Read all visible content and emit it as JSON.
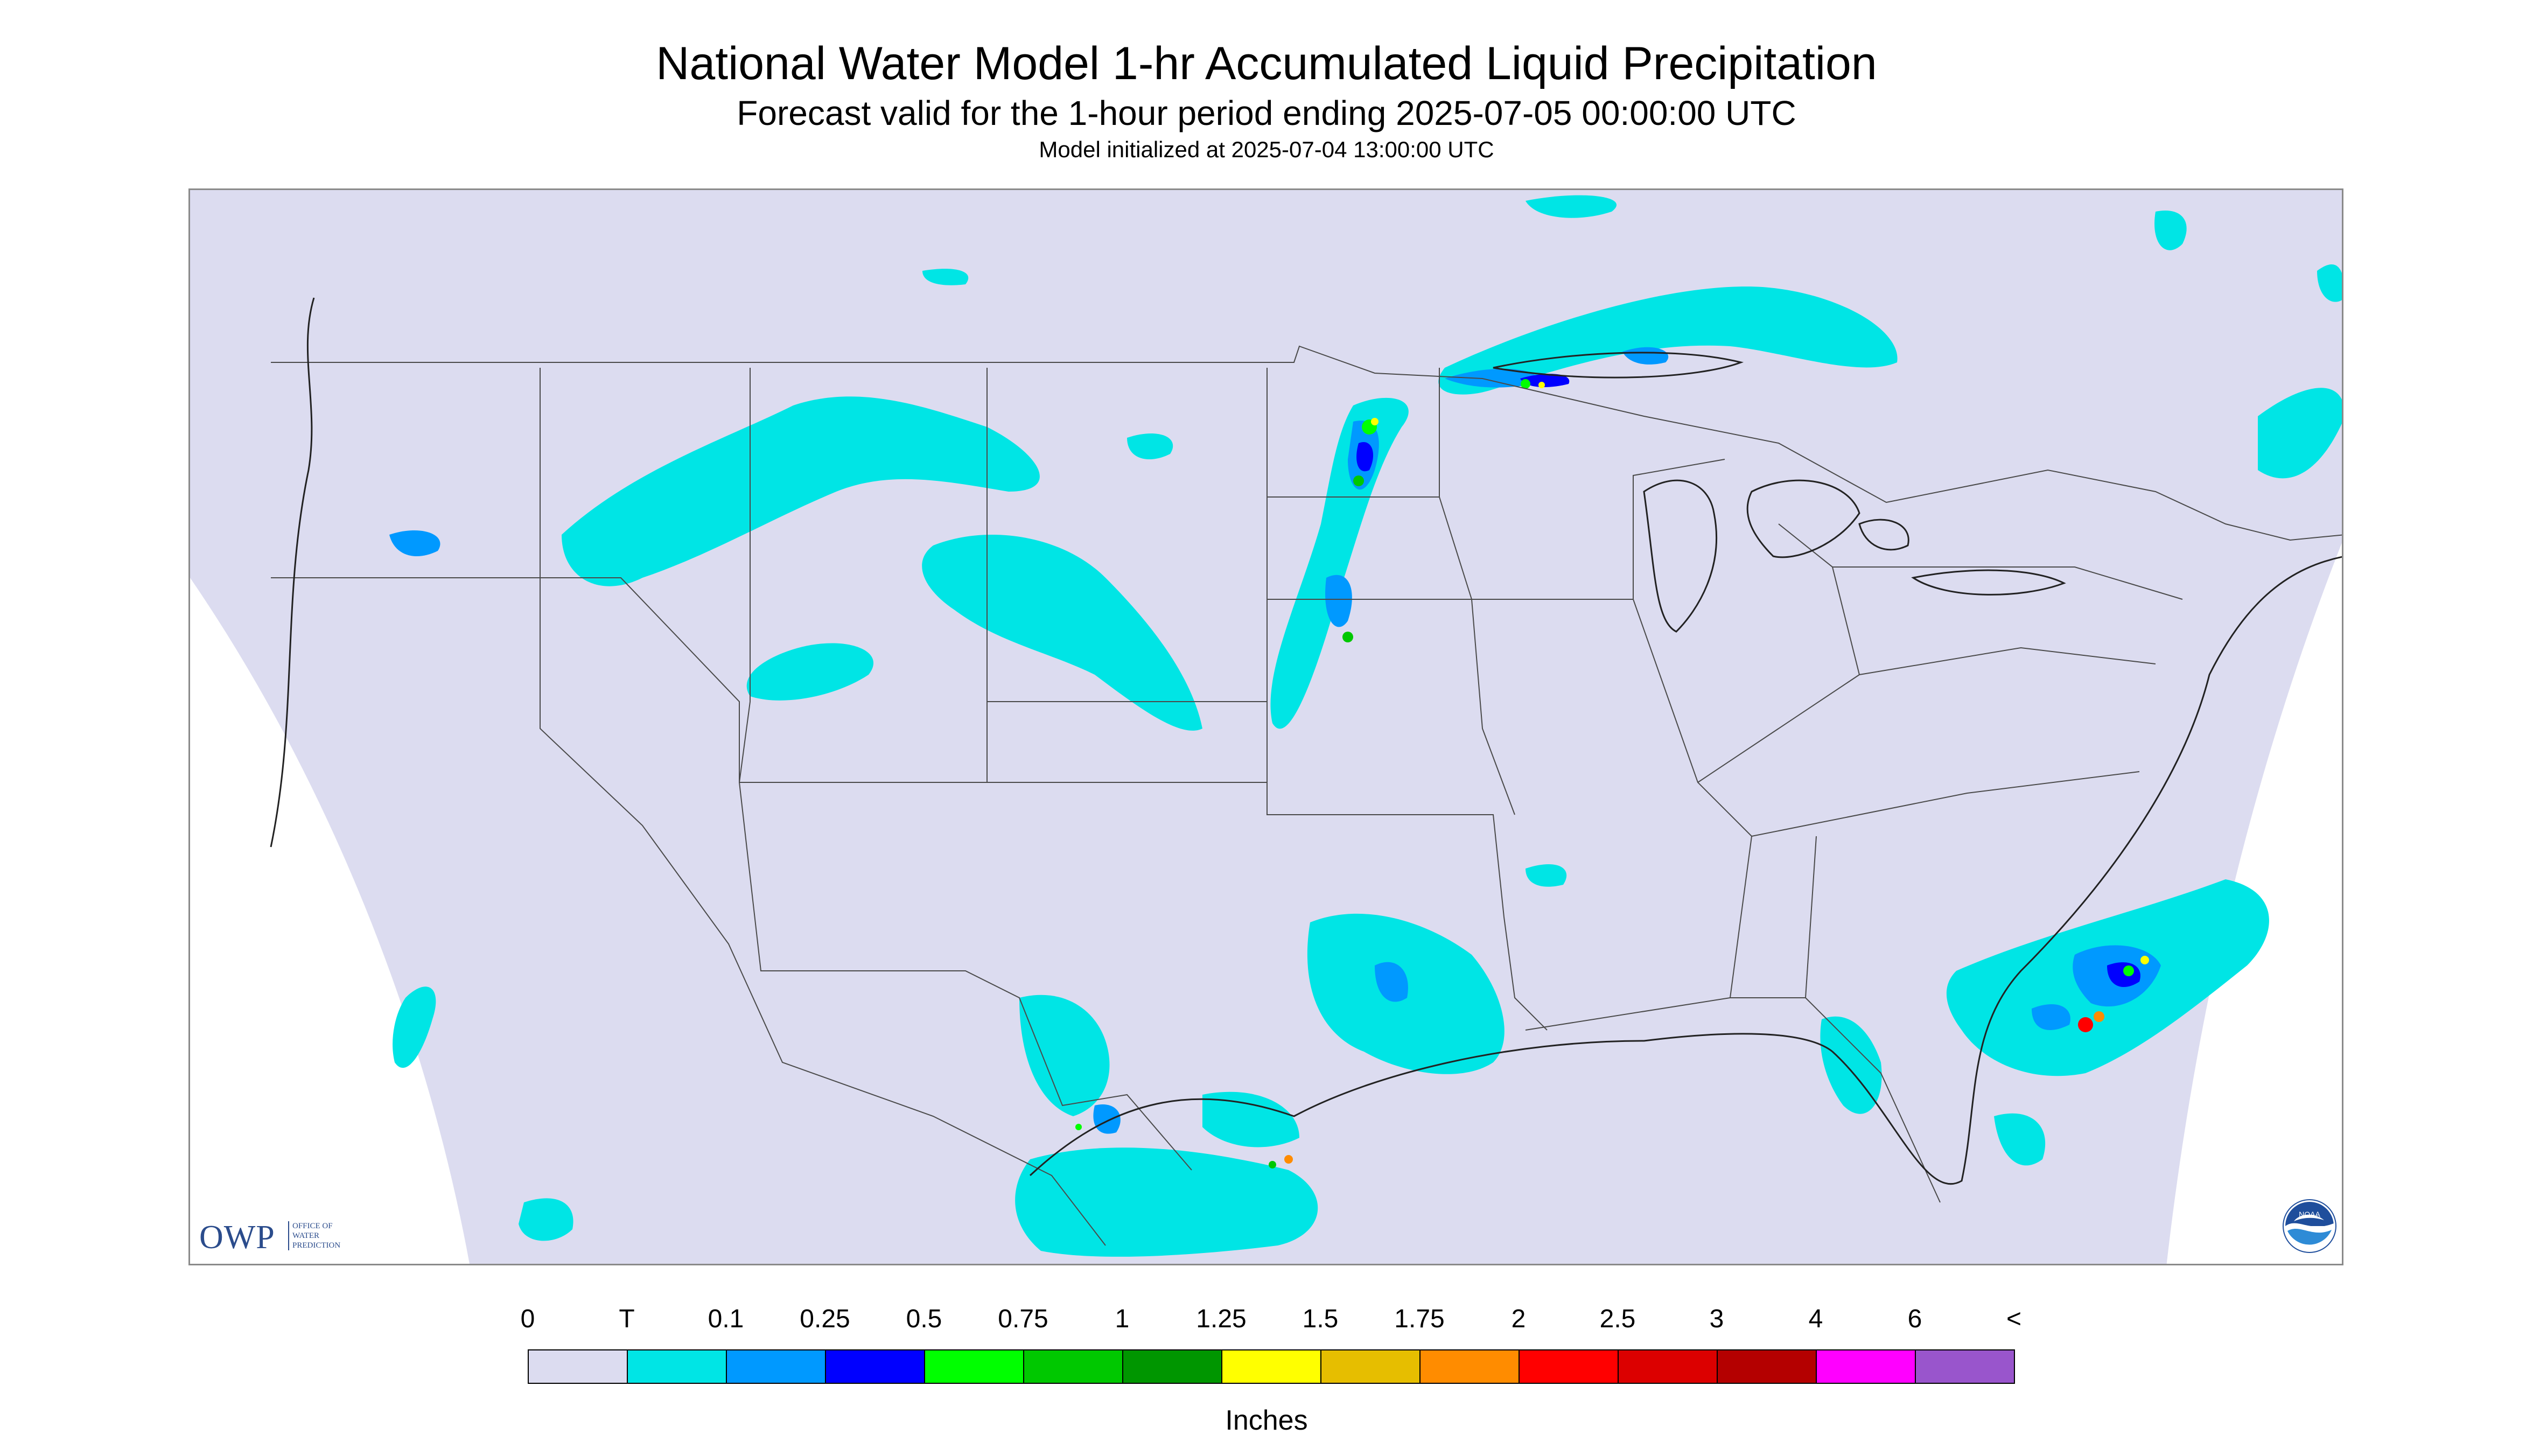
{
  "header": {
    "title": "National Water Model 1-hr Accumulated Liquid Precipitation",
    "subtitle": "Forecast valid for the 1-hour period ending 2025-07-05 00:00:00 UTC",
    "init": "Model initialized at 2025-07-04 13:00:00 UTC"
  },
  "logos": {
    "owp_mark": "OWP",
    "owp_text": [
      "OFFICE OF",
      "WATER",
      "PREDICTION"
    ],
    "noaa_text": "NOAA"
  },
  "colors": {
    "background_land": "#dcdcf0",
    "boundaries": "#4a4a4a"
  },
  "legend": {
    "labels": [
      "0",
      "T",
      "0.1",
      "0.25",
      "0.5",
      "0.75",
      "1",
      "1.25",
      "1.5",
      "1.75",
      "2",
      "2.5",
      "3",
      "4",
      "6",
      "<"
    ],
    "colors": [
      "#dcdcf0",
      "#00e5e5",
      "#0099ff",
      "#0000ff",
      "#00ff00",
      "#00c800",
      "#009600",
      "#ffff00",
      "#e6be00",
      "#ff8c00",
      "#ff0000",
      "#dc0000",
      "#b40000",
      "#ff00ff",
      "#9955cc"
    ],
    "units": "Inches"
  }
}
